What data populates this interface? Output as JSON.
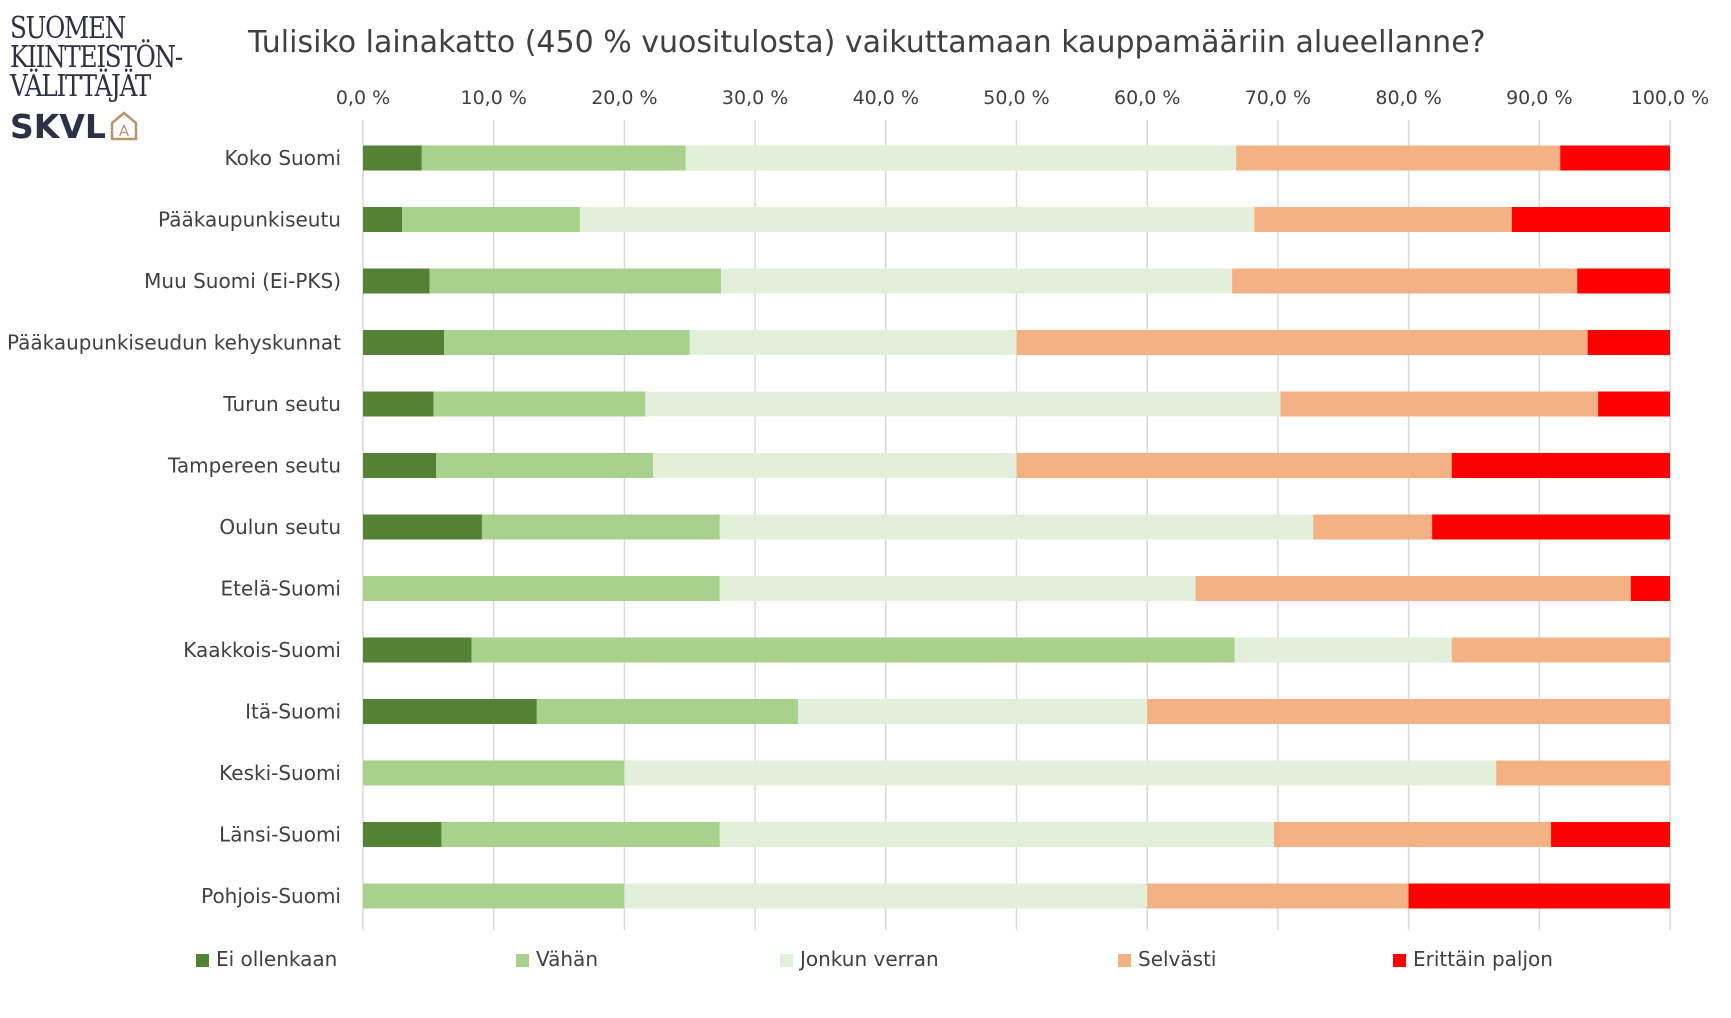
{
  "logo": {
    "line1": "SUOMEN",
    "line2": "KIINTEISTÖN-",
    "line3": "VÄLITTÄJÄT",
    "brand": "SKVL",
    "brand_mark_letter": "A",
    "text_color": "#2f2f45",
    "mark_color": "#b8956a"
  },
  "chart_data": {
    "type": "bar",
    "orientation": "horizontal",
    "stacked": true,
    "title": "Tulisiko lainakatto (450 % vuositulosta) vaikuttamaan kauppamääriin alueellanne?",
    "xlim": [
      0,
      100
    ],
    "x_ticks": [
      "0,0 %",
      "10,0 %",
      "20,0 %",
      "30,0 %",
      "40,0 %",
      "50,0 %",
      "60,0 %",
      "70,0 %",
      "80,0 %",
      "90,0 %",
      "100,0 %"
    ],
    "x_axis_position": "top",
    "grid": true,
    "legend_position": "bottom",
    "categories": [
      "Koko Suomi",
      "Pääkaupunkiseutu",
      "Muu Suomi (Ei-PKS)",
      "Pääkaupunkiseudun kehyskunnat",
      "Turun seutu",
      "Tampereen seutu",
      "Oulun seutu",
      "Etelä-Suomi",
      "Kaakkois-Suomi",
      "Itä-Suomi",
      "Keski-Suomi",
      "Länsi-Suomi",
      "Pohjois-Suomi"
    ],
    "series": [
      {
        "name": "Ei ollenkaan",
        "color": "#548235",
        "values": [
          4.5,
          3.0,
          5.1,
          6.2,
          5.4,
          5.6,
          9.1,
          0,
          8.3,
          13.3,
          0,
          6.0,
          0
        ]
      },
      {
        "name": "Vähän",
        "color": "#a9d18e",
        "values": [
          20.2,
          13.6,
          22.3,
          18.8,
          16.2,
          16.6,
          18.2,
          27.3,
          58.4,
          20.0,
          20.0,
          21.3,
          20.0
        ]
      },
      {
        "name": "Jonkun verran",
        "color": "#e2efda",
        "values": [
          42.1,
          51.6,
          39.1,
          25.0,
          48.6,
          27.8,
          45.4,
          36.4,
          16.6,
          26.7,
          66.7,
          42.4,
          40.0
        ]
      },
      {
        "name": "Selvästi",
        "color": "#f4b183",
        "values": [
          24.8,
          19.7,
          26.4,
          43.7,
          24.3,
          33.3,
          9.1,
          33.3,
          16.7,
          40.0,
          13.3,
          21.2,
          20.0
        ]
      },
      {
        "name": "Erittäin paljon",
        "color": "#ff0000",
        "values": [
          8.4,
          12.1,
          7.1,
          6.3,
          5.5,
          16.7,
          18.2,
          3.0,
          0,
          0,
          0,
          9.1,
          20.0
        ]
      }
    ]
  }
}
